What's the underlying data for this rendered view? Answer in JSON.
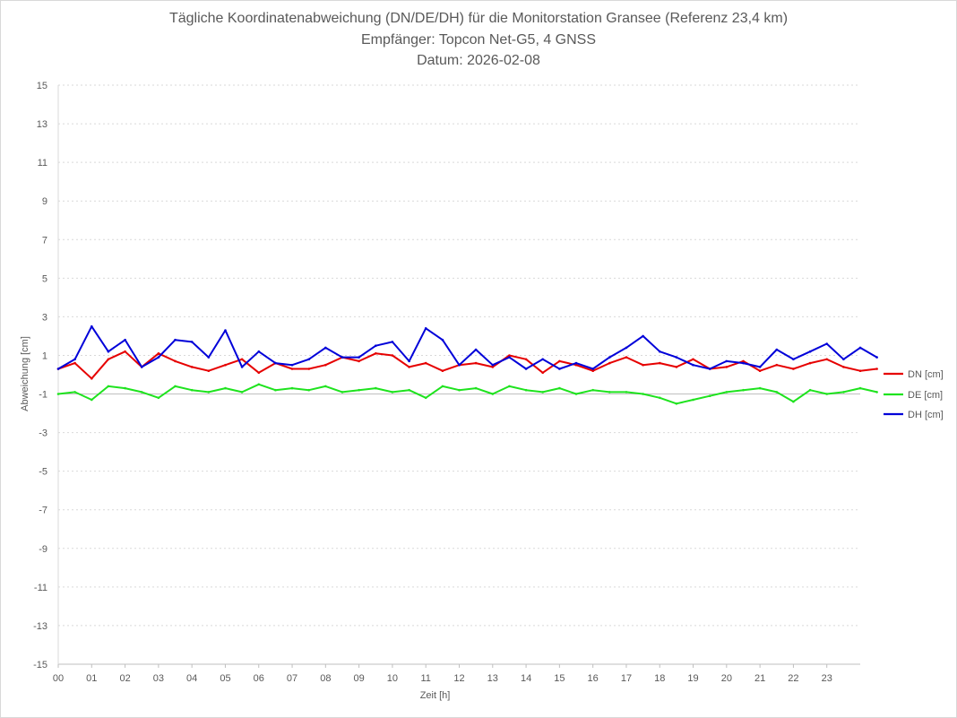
{
  "title": {
    "line1": "Tägliche Koordinatenabweichung (DN/DE/DH) für die Monitorstation Gransee (Referenz 23,4 km)",
    "line2": "Empfänger: Topcon Net-G5, 4 GNSS",
    "line3": "Datum: 2026-02-08"
  },
  "chart_data": {
    "type": "line",
    "title": "Tägliche Koordinatenabweichung (DN/DE/DH) für die Monitorstation Gransee (Referenz 23,4 km)",
    "subtitle": [
      "Empfänger: Topcon Net-G5, 4 GNSS",
      "Datum: 2026-02-08"
    ],
    "xlabel": "Zeit [h]",
    "ylabel": "Abweichung [cm]",
    "xlim": [
      0,
      24
    ],
    "ylim": [
      -15,
      15
    ],
    "x_ticks": [
      "00",
      "01",
      "02",
      "03",
      "04",
      "05",
      "06",
      "07",
      "08",
      "09",
      "10",
      "11",
      "12",
      "13",
      "14",
      "15",
      "16",
      "17",
      "18",
      "19",
      "20",
      "21",
      "22",
      "23"
    ],
    "y_ticks": [
      15,
      13,
      11,
      9,
      7,
      5,
      3,
      1,
      -1,
      -3,
      -5,
      -7,
      -9,
      -11,
      -13,
      -15
    ],
    "grid": true,
    "legend_position": "right",
    "x_step_hours": 0.5,
    "series": [
      {
        "name": "DN [cm]",
        "color": "#e60000",
        "values": [
          0.3,
          0.6,
          -0.2,
          0.8,
          1.2,
          0.4,
          1.1,
          0.7,
          0.4,
          0.2,
          0.5,
          0.8,
          0.1,
          0.6,
          0.3,
          0.3,
          0.5,
          0.9,
          0.7,
          1.1,
          1.0,
          0.4,
          0.6,
          0.2,
          0.5,
          0.6,
          0.4,
          1.0,
          0.8,
          0.1,
          0.7,
          0.5,
          0.2,
          0.6,
          0.9,
          0.5,
          0.6,
          0.4,
          0.8,
          0.3,
          0.4,
          0.7,
          0.2,
          0.5,
          0.3,
          0.6,
          0.8,
          0.4,
          0.2,
          0.3
        ]
      },
      {
        "name": "DE [cm]",
        "color": "#1ee31e",
        "values": [
          -1.0,
          -0.9,
          -1.3,
          -0.6,
          -0.7,
          -0.9,
          -1.2,
          -0.6,
          -0.8,
          -0.9,
          -0.7,
          -0.9,
          -0.5,
          -0.8,
          -0.7,
          -0.8,
          -0.6,
          -0.9,
          -0.8,
          -0.7,
          -0.9,
          -0.8,
          -1.2,
          -0.6,
          -0.8,
          -0.7,
          -1.0,
          -0.6,
          -0.8,
          -0.9,
          -0.7,
          -1.0,
          -0.8,
          -0.9,
          -0.9,
          -1.0,
          -1.2,
          -1.5,
          -1.3,
          -1.1,
          -0.9,
          -0.8,
          -0.7,
          -0.9,
          -1.4,
          -0.8,
          -1.0,
          -0.9,
          -0.7,
          -0.9
        ]
      },
      {
        "name": "DH [cm]",
        "color": "#0000d9",
        "values": [
          0.3,
          0.8,
          2.5,
          1.2,
          1.8,
          0.4,
          0.9,
          1.8,
          1.7,
          0.9,
          2.3,
          0.4,
          1.2,
          0.6,
          0.5,
          0.8,
          1.4,
          0.9,
          0.9,
          1.5,
          1.7,
          0.7,
          2.4,
          1.8,
          0.5,
          1.3,
          0.5,
          0.9,
          0.3,
          0.8,
          0.3,
          0.6,
          0.3,
          0.9,
          1.4,
          2.0,
          1.2,
          0.9,
          0.5,
          0.3,
          0.7,
          0.6,
          0.4,
          1.3,
          0.8,
          1.2,
          1.6,
          0.8,
          1.4,
          0.9
        ]
      }
    ]
  }
}
